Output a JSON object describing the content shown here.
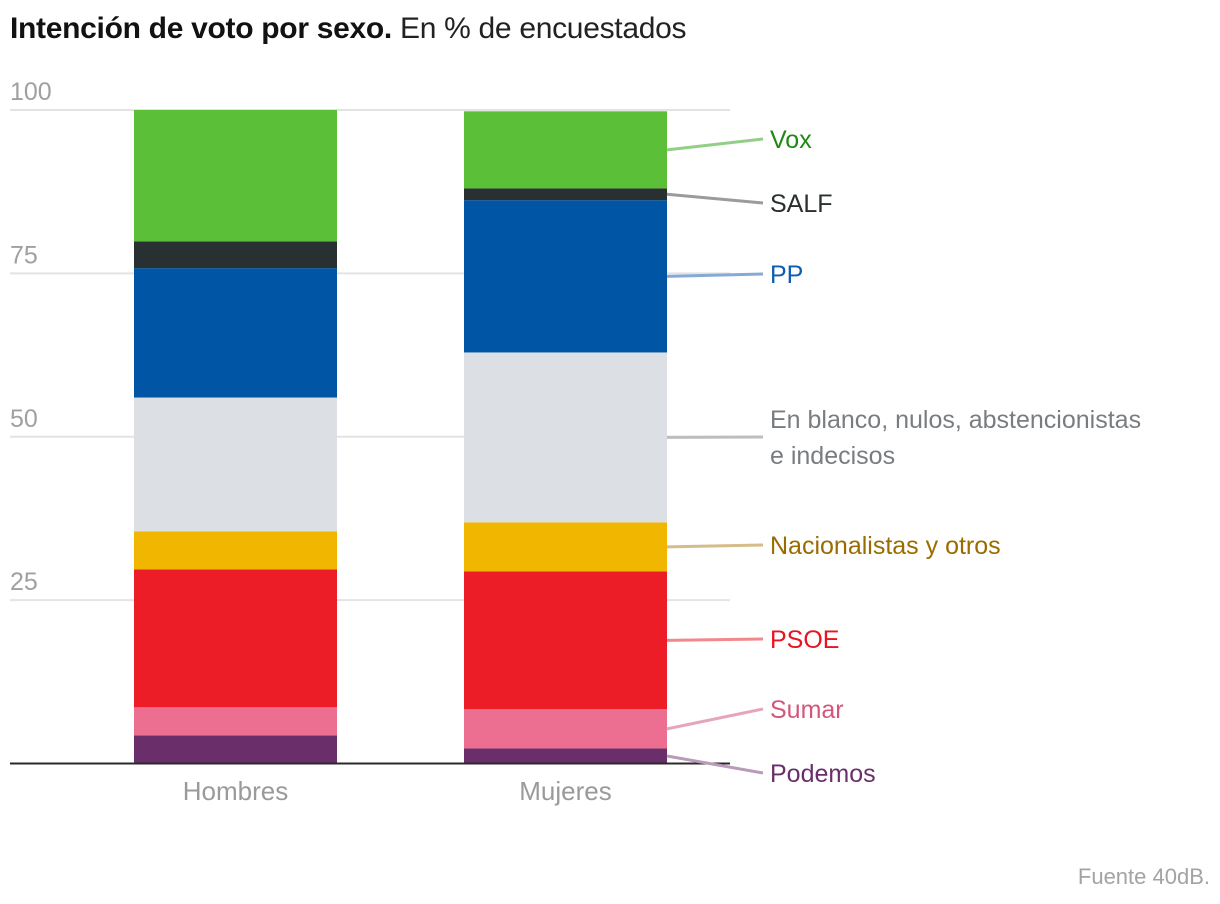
{
  "title": {
    "bold": "Intención de voto por sexo.",
    "light": "En % de encuestados"
  },
  "source": "Fuente 40dB.",
  "chart_data": {
    "type": "bar",
    "stacked": true,
    "title": "Intención de voto por sexo. En % de encuestados",
    "xlabel": "",
    "ylabel": "",
    "ylim": [
      0,
      100
    ],
    "yticks": [
      25,
      50,
      75,
      100
    ],
    "grid": true,
    "categories": [
      "Hombres",
      "Mujeres"
    ],
    "series": [
      {
        "name": "Podemos",
        "color": "#6a2f6b",
        "label_color": "#6a2f6b",
        "line_color": "#b89bb9",
        "values": [
          4.3,
          2.3
        ]
      },
      {
        "name": "Sumar",
        "color": "#ec6f92",
        "label_color": "#d4567a",
        "line_color": "#e6a6ba",
        "values": [
          4.3,
          6.0
        ]
      },
      {
        "name": "PSOE",
        "color": "#ec1d26",
        "label_color": "#e8141f",
        "line_color": "#f0898e",
        "values": [
          21.1,
          21.1
        ]
      },
      {
        "name": "Nacionalistas y otros",
        "color": "#f1b700",
        "label_color": "#9a6c00",
        "line_color": "#d4bd8a",
        "values": [
          5.8,
          7.5
        ]
      },
      {
        "name": "En blanco, nulos, abstencionistas e indecisos",
        "label_lines": [
          "En blanco, nulos, abstencionistas",
          "e indecisos"
        ],
        "color": "#dce0e4",
        "label_color": "#7a7d80",
        "line_color": "#bdbdbd",
        "values": [
          20.5,
          26.0
        ]
      },
      {
        "name": "PP",
        "color": "#0055a5",
        "label_color": "#0e5eb0",
        "line_color": "#86aad6",
        "values": [
          19.8,
          23.3
        ]
      },
      {
        "name": "SALF",
        "color": "#283031",
        "label_color": "#2b2f30",
        "line_color": "#999b9c",
        "values": [
          4.1,
          1.8
        ]
      },
      {
        "name": "Vox",
        "color": "#5bbf37",
        "label_color": "#1e8a12",
        "line_color": "#92cf86",
        "values": [
          20.1,
          11.8
        ]
      }
    ],
    "legend": "right, labels attached to the Mujeres bar with leader lines"
  }
}
